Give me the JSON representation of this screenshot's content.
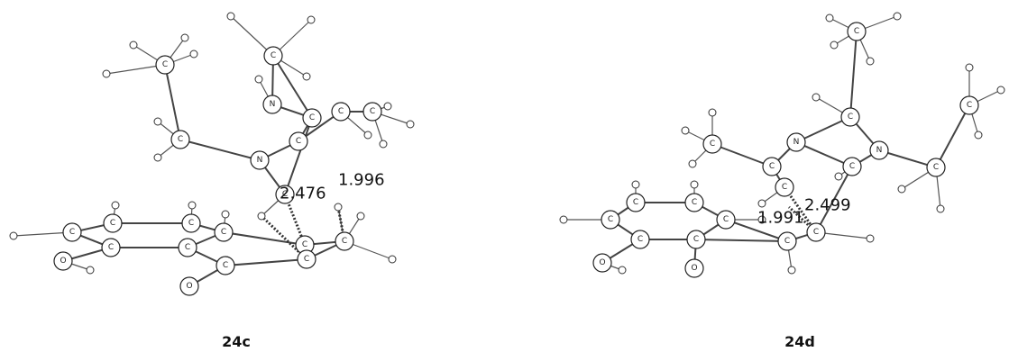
{
  "molecules": [
    {
      "label": "24c",
      "distances": [
        2.476,
        1.996
      ],
      "atoms": [
        "C",
        "C",
        "N",
        "C",
        "C",
        "N",
        "C",
        "C",
        "C",
        "C",
        "C",
        "C",
        "C",
        "C",
        "C",
        "O",
        "C",
        "C",
        "O",
        "C",
        "C",
        "C"
      ]
    },
    {
      "label": "24d",
      "distances": [
        2.499,
        1.991
      ],
      "atoms": [
        "C",
        "C",
        "C",
        "N",
        "C",
        "C",
        "N",
        "C",
        "C",
        "C",
        "C",
        "C",
        "C",
        "C",
        "C",
        "O",
        "C",
        "O",
        "C",
        "C"
      ]
    }
  ]
}
